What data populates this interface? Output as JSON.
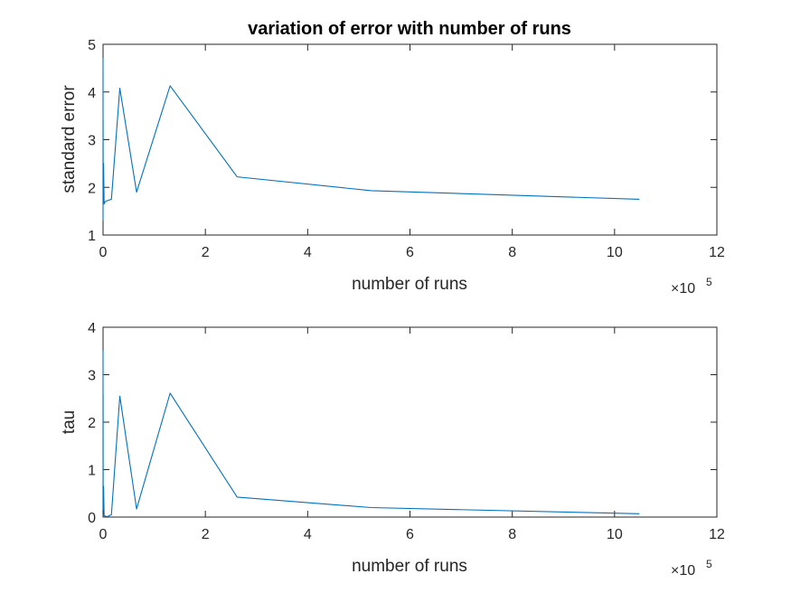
{
  "chart_data": [
    {
      "type": "line",
      "title": "variation of error with number of runs",
      "xlabel": "number of runs",
      "ylabel": "standard error",
      "x_exponent_label": "×10",
      "x_exponent": "5",
      "xlim": [
        0,
        12
      ],
      "ylim": [
        1,
        5
      ],
      "xticks": [
        "0",
        "2",
        "4",
        "6",
        "8",
        "10",
        "12"
      ],
      "yticks": [
        "1",
        "2",
        "3",
        "4",
        "5"
      ],
      "grid": false,
      "line_color": "#0072bd",
      "series": [
        {
          "x": [
            1e-05,
            2e-05,
            4e-05,
            8e-05,
            0.00016,
            0.00032,
            0.00064,
            0.00128,
            0.00256,
            0.00512,
            0.01024,
            0.02048,
            0.04096,
            0.08192,
            0.16384,
            0.32768,
            0.65536,
            1.31072,
            2.62144,
            5.24288,
            10.48576
          ],
          "y": [
            1.3,
            4.7,
            2.2,
            3.8,
            1.9,
            2.7,
            2.1,
            3.4,
            2.0,
            1.8,
            2.5,
            1.65,
            1.7,
            1.72,
            1.75,
            4.08,
            1.9,
            4.13,
            2.22,
            1.93,
            1.75
          ]
        }
      ]
    },
    {
      "type": "line",
      "title": "",
      "xlabel": "number of runs",
      "ylabel": "tau",
      "x_exponent_label": "×10",
      "x_exponent": "5",
      "xlim": [
        0,
        12
      ],
      "ylim": [
        0,
        4
      ],
      "xticks": [
        "0",
        "2",
        "4",
        "6",
        "8",
        "10",
        "12"
      ],
      "yticks": [
        "0",
        "1",
        "2",
        "3",
        "4"
      ],
      "grid": false,
      "line_color": "#0072bd",
      "series": [
        {
          "x": [
            1e-05,
            2e-05,
            4e-05,
            8e-05,
            0.00016,
            0.00032,
            0.00064,
            0.00128,
            0.00256,
            0.00512,
            0.01024,
            0.02048,
            0.04096,
            0.08192,
            0.16384,
            0.32768,
            0.65536,
            1.31072,
            2.62144,
            5.24288,
            10.48576
          ],
          "y": [
            0.3,
            3.5,
            0.5,
            2.9,
            0.2,
            1.8,
            0.4,
            2.6,
            0.3,
            0.15,
            0.65,
            0.03,
            0.02,
            0.01,
            0.05,
            2.55,
            0.17,
            2.61,
            0.42,
            0.2,
            0.07
          ]
        }
      ]
    }
  ]
}
